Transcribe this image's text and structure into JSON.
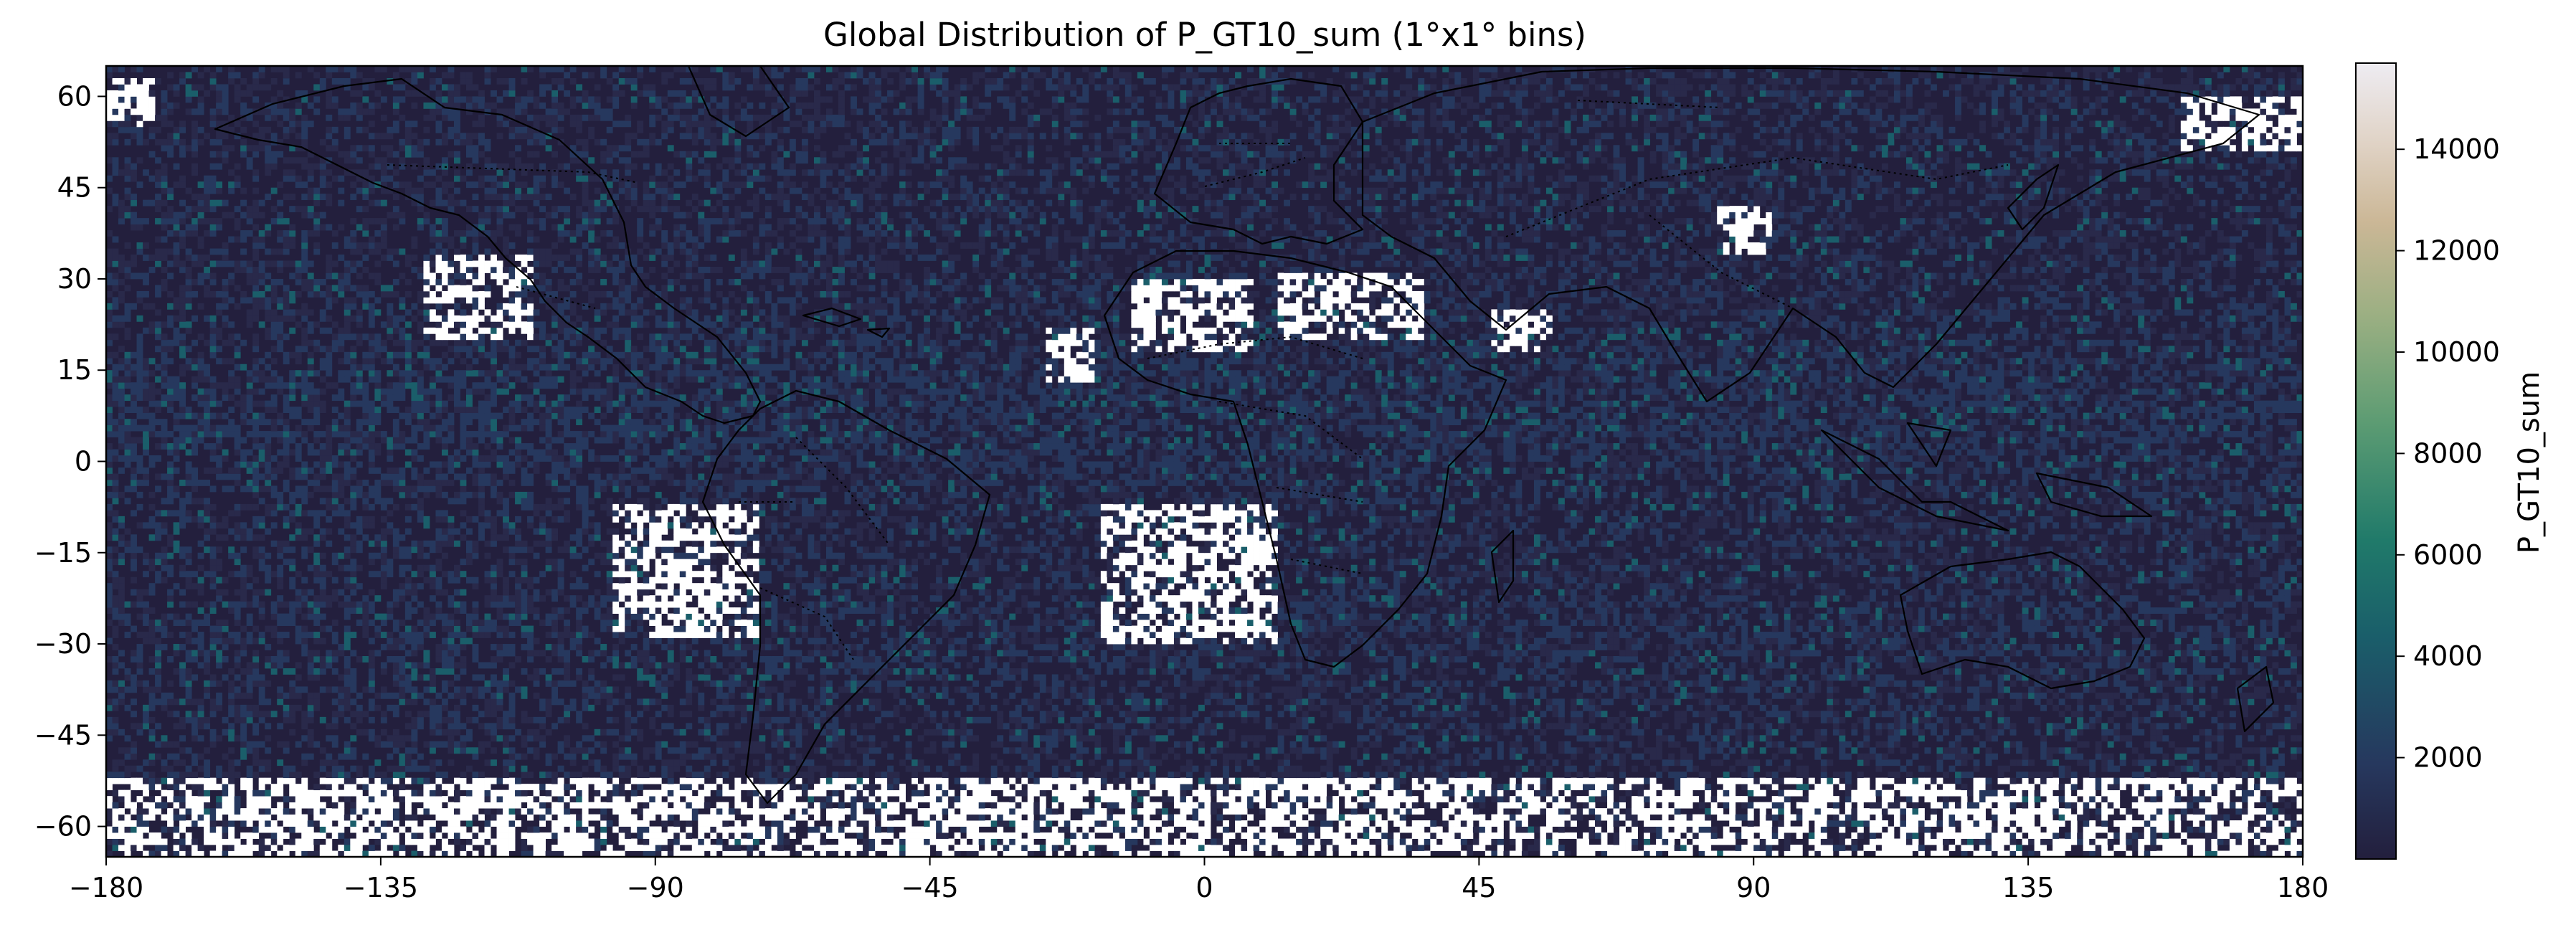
{
  "chart_data": {
    "type": "heatmap",
    "title": "Global Distribution of P_GT10_sum (1°x1° bins)",
    "xlabel": "",
    "ylabel": "",
    "xlim": [
      -180,
      180
    ],
    "ylim": [
      -65,
      65
    ],
    "x_ticks": [
      -180,
      -135,
      -90,
      -45,
      0,
      45,
      90,
      135,
      180
    ],
    "y_ticks": [
      60,
      45,
      30,
      15,
      0,
      -15,
      -30,
      -45,
      -60
    ],
    "bin_size_deg": 1,
    "colorbar": {
      "label": "P_GT10_sum",
      "range": [
        0,
        15700
      ],
      "ticks": [
        2000,
        4000,
        6000,
        8000,
        10000,
        12000,
        14000
      ],
      "colormap": [
        "#231f3d",
        "#26385e",
        "#1a5e6a",
        "#207a6a",
        "#5d9c73",
        "#9aaf82",
        "#cbb796",
        "#e0d3c6",
        "#eeecf2"
      ],
      "placement": "right"
    },
    "no_data_color": "#ffffff",
    "background_color": "#231f3d",
    "no_data_regions": [
      {
        "lon": [
          -128,
          -110
        ],
        "lat": [
          20,
          34
        ]
      },
      {
        "lon": [
          -97,
          -73
        ],
        "lat": [
          -29,
          -7
        ]
      },
      {
        "lon": [
          -26,
          -18
        ],
        "lat": [
          13,
          22
        ]
      },
      {
        "lon": [
          -12,
          8
        ],
        "lat": [
          18,
          30
        ]
      },
      {
        "lon": [
          12,
          36
        ],
        "lat": [
          20,
          31
        ]
      },
      {
        "lon": [
          47,
          57
        ],
        "lat": [
          18,
          25
        ]
      },
      {
        "lon": [
          84,
          93
        ],
        "lat": [
          34,
          42
        ]
      },
      {
        "lon": [
          -17,
          12
        ],
        "lat": [
          -30,
          -7
        ]
      },
      {
        "lon": [
          -180,
          180
        ],
        "lat": [
          -65,
          -52
        ]
      },
      {
        "lon": [
          -180,
          -172
        ],
        "lat": [
          55,
          63
        ]
      },
      {
        "lon": [
          160,
          180
        ],
        "lat": [
          51,
          60
        ]
      }
    ],
    "series": []
  }
}
